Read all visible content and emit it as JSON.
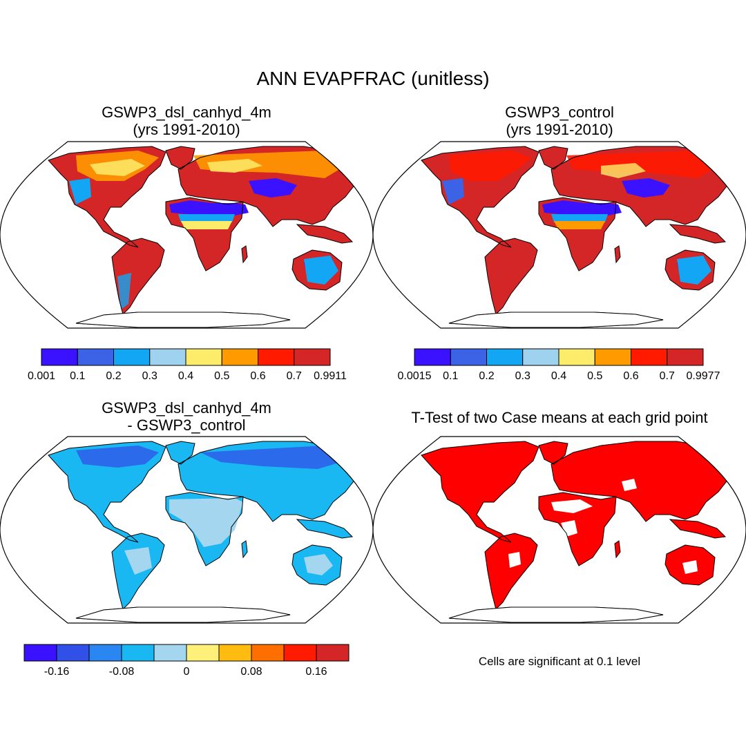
{
  "title": "ANN EVAPFRAC (unitless)",
  "colors": {
    "map_outline": "#000000",
    "sig_red": "#ff0000"
  },
  "panels": [
    {
      "id": "test",
      "title_line1": "GSWP3_dsl_canhyd_4m",
      "title_line2": "(yrs 1991-2010)",
      "colorbar": {
        "colors": [
          "#3a12ff",
          "#3c62e6",
          "#12a6f4",
          "#9fd2ef",
          "#fcec6a",
          "#ff9a00",
          "#ff1a00",
          "#d42626"
        ],
        "ticks": [
          "0.001",
          "0.1",
          "0.2",
          "0.3",
          "0.4",
          "0.5",
          "0.6",
          "0.7",
          "0.9911"
        ]
      }
    },
    {
      "id": "control",
      "title_line1": "GSWP3_control",
      "title_line2": "(yrs 1991-2010)",
      "colorbar": {
        "colors": [
          "#3a12ff",
          "#3c62e6",
          "#12a6f4",
          "#9fd2ef",
          "#fcec6a",
          "#ff9a00",
          "#ff1a00",
          "#d42626"
        ],
        "ticks": [
          "0.0015",
          "0.1",
          "0.2",
          "0.3",
          "0.4",
          "0.5",
          "0.6",
          "0.7",
          "0.9977"
        ]
      }
    },
    {
      "id": "diff",
      "title_line1": "GSWP3_dsl_canhyd_4m",
      "title_line2": "- GSWP3_control",
      "colorbar": {
        "colors": [
          "#3a12ff",
          "#3050e8",
          "#2a86f0",
          "#1ab8f2",
          "#a4d6f0",
          "#fff07a",
          "#ffbb10",
          "#ff6f00",
          "#ff1a00",
          "#d42626"
        ],
        "ticks": [
          "-0.16",
          "-0.08",
          "0",
          "0.08",
          "0.16"
        ]
      }
    },
    {
      "id": "ttest",
      "title_line1": "T-Test of two Case means at each grid point",
      "note": "Cells are significant at 0.1 level"
    }
  ]
}
